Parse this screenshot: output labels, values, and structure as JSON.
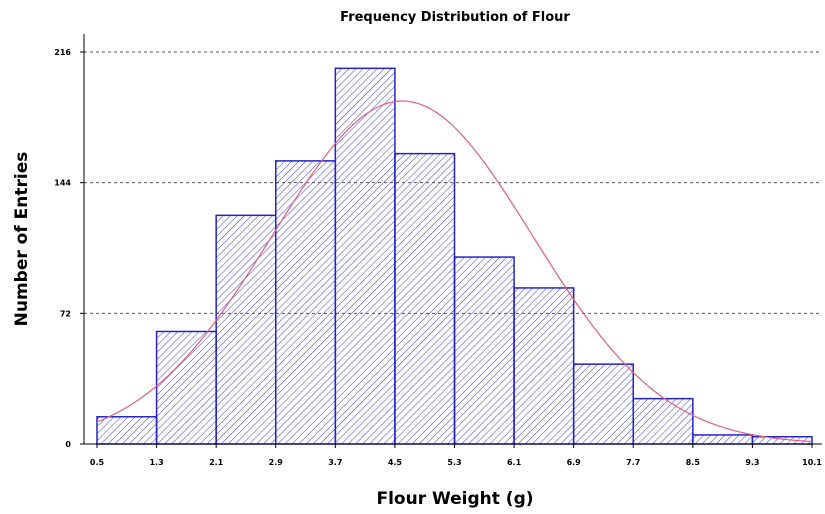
{
  "chart_data": {
    "type": "bar",
    "title": "Frequency Distribution of Flour",
    "xlabel": "Flour Weight (g)",
    "ylabel": "Number of Entries",
    "x_ticks": [
      "0.5",
      "1.3",
      "2.1",
      "2.9",
      "3.7",
      "4.5",
      "5.3",
      "6.1",
      "6.9",
      "7.7",
      "8.5",
      "9.3",
      "10.1"
    ],
    "y_ticks": [
      "0",
      "72",
      "144",
      "216"
    ],
    "xlim": [
      0.5,
      10.1
    ],
    "ylim": [
      0,
      216
    ],
    "bin_edges": [
      0.5,
      1.3,
      2.1,
      2.9,
      3.7,
      4.5,
      5.3,
      6.1,
      6.9,
      7.7,
      8.5,
      9.3,
      10.1
    ],
    "values": [
      15,
      62,
      126,
      156,
      207,
      160,
      103,
      86,
      44,
      25,
      5,
      4
    ],
    "fit_curve": {
      "type": "normal",
      "mean": 4.6,
      "peak": 189,
      "sd": 1.75
    },
    "grid": "horizontal dashed",
    "colors": {
      "bar_edge": "#2323c8",
      "bar_hatch": "#4a4ad0",
      "fit_line": "#e0607a",
      "grid": "#555555"
    }
  }
}
